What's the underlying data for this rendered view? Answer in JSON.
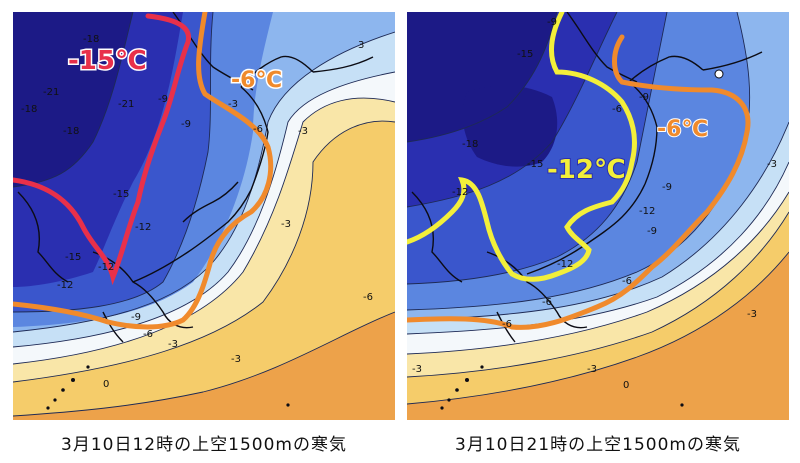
{
  "maps": [
    {
      "caption": "3月10日12時の上空1500mの寒気",
      "highlight_labels": [
        {
          "text": "-15℃",
          "color": "#e8304a"
        },
        {
          "text": "-6℃",
          "color": "#f08a2c"
        }
      ],
      "contour_labels": [
        "-18",
        "-21",
        "-18",
        "-21",
        "-18",
        "-15",
        "-12",
        "-15",
        "-12",
        "-9",
        "-9",
        "-6",
        "-3",
        "-3",
        "-3",
        "-3",
        "-6",
        "0",
        "3",
        "-3",
        "-6",
        "-9",
        "-12"
      ]
    },
    {
      "caption": "3月10日21時の上空1500mの寒気",
      "highlight_labels": [
        {
          "text": "-12℃",
          "color": "#f3ef3a"
        },
        {
          "text": "-6℃",
          "color": "#f08a2c"
        }
      ],
      "contour_labels": [
        "-9",
        "-18",
        "-15",
        "-12",
        "-15",
        "-6",
        "-9",
        "-3",
        "-12",
        "-9",
        "-12",
        "-6",
        "-6",
        "-3",
        "0",
        "-3",
        "-6",
        "-9",
        "-3"
      ]
    }
  ],
  "colors": {
    "band_dark": "#1c1a86",
    "band_deep": "#2a2fb0",
    "band_blue": "#3a56cc",
    "band_mid": "#5b86e0",
    "band_light": "#8db6ee",
    "band_pale": "#c6e0f6",
    "band_white": "#f4f8fb",
    "band_cream": "#f9e6a8",
    "band_yellow": "#f5cc6a",
    "band_orange": "#eda24a",
    "line_red": "#e8304a",
    "line_orange": "#f08a2c",
    "line_yellow": "#f3ef3a"
  }
}
